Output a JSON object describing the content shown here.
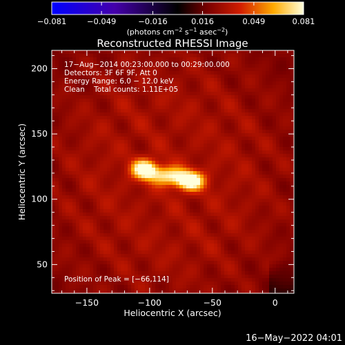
{
  "chart_data": {
    "type": "heatmap",
    "title": "Reconstructed RHESSI Image",
    "xlabel": "Heliocentric X (arcsec)",
    "ylabel": "Heliocentric Y (arcsec)",
    "xlim": [
      -178,
      15
    ],
    "ylim": [
      28,
      214
    ],
    "xticks": [
      -150,
      -100,
      -50,
      0
    ],
    "yticks": [
      50,
      100,
      150,
      200
    ],
    "xtick_labels": [
      "−150",
      "−100",
      "−50",
      "0"
    ],
    "ytick_labels": [
      "50",
      "100",
      "150",
      "200"
    ],
    "colorbar": {
      "min": -0.081,
      "max": 0.081,
      "ticks": [
        -0.081,
        -0.049,
        -0.016,
        0.016,
        0.049,
        0.081
      ],
      "tick_labels": [
        "−0.081",
        "−0.049",
        "−0.016",
        "0.016",
        "0.049",
        "0.081"
      ],
      "label_parts": [
        "(photons cm",
        "−2",
        " s",
        "−1",
        " asec",
        "−2",
        ")"
      ]
    },
    "annotations": [
      "17−Aug−2014 00:23:00.000 to 00:29:00.000",
      "Detectors: 3F 6F 9F, Att 0",
      "Energy Range: 6.0 − 12.0 keV",
      "Clean    Total counts: 1.11E+05"
    ],
    "peak_label": "Position of Peak = [−66,114]",
    "peak": [
      -66,
      114
    ],
    "sources": [
      {
        "x": -104,
        "y": 123,
        "sx": 7,
        "sy": 5,
        "amp": 0.08
      },
      {
        "x": -68,
        "y": 114,
        "sx": 8,
        "sy": 5,
        "amp": 0.081
      },
      {
        "x": -86,
        "y": 118,
        "sx": 10,
        "sy": 5,
        "amp": 0.062
      }
    ],
    "background_level": 0.04,
    "date_stamp": "16−May−2022 04:01"
  }
}
